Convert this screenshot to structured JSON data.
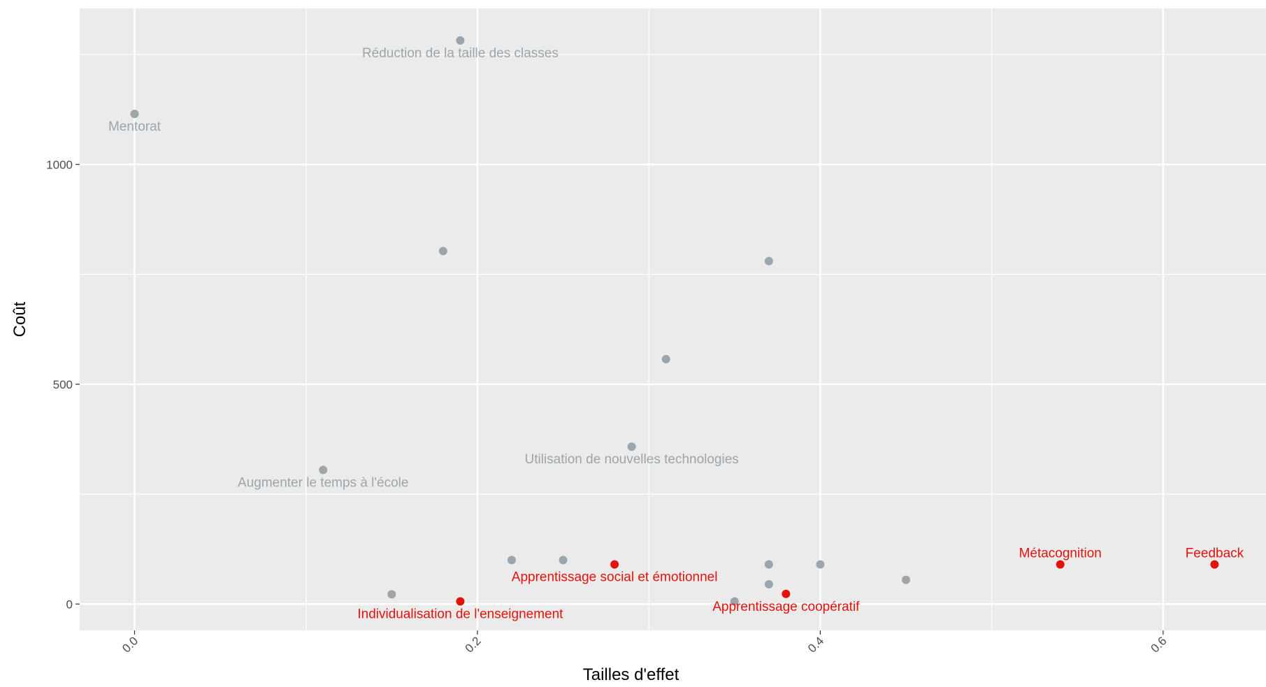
{
  "chart_data": {
    "type": "scatter",
    "xlabel": "Tailles d'effet",
    "ylabel": "Coût",
    "xlim": [
      -0.032,
      0.66
    ],
    "ylim": [
      -60,
      1355
    ],
    "x_ticks": [
      0.0,
      0.2,
      0.4,
      0.6
    ],
    "x_tick_labels": [
      "0.0",
      "0.2",
      "0.4",
      "0.6"
    ],
    "y_ticks": [
      0,
      500,
      1000
    ],
    "y_tick_labels": [
      "0",
      "500",
      "1000"
    ],
    "grid": true,
    "colors": {
      "panel": "#ebebeb",
      "grid": "#ffffff",
      "neutral": "#9aa6ac",
      "highlight": "#e3120b"
    },
    "points": [
      {
        "x": 0.0,
        "y": 1115,
        "label": "Mentorat",
        "highlight": false
      },
      {
        "x": 0.19,
        "y": 1282,
        "label": "Réduction de la taille des classes",
        "highlight": false
      },
      {
        "x": 0.18,
        "y": 803,
        "label": "",
        "highlight": false
      },
      {
        "x": 0.37,
        "y": 780,
        "label": "",
        "highlight": false
      },
      {
        "x": 0.31,
        "y": 557,
        "label": "",
        "highlight": false
      },
      {
        "x": 0.29,
        "y": 358,
        "label": "Utilisation de nouvelles technologies",
        "highlight": false
      },
      {
        "x": 0.11,
        "y": 305,
        "label": "Augmenter le temps à l'école",
        "highlight": false
      },
      {
        "x": 0.15,
        "y": 22,
        "label": "",
        "highlight": false
      },
      {
        "x": 0.22,
        "y": 100,
        "label": "",
        "highlight": false
      },
      {
        "x": 0.25,
        "y": 100,
        "label": "",
        "highlight": false
      },
      {
        "x": 0.35,
        "y": 6,
        "label": "",
        "highlight": false
      },
      {
        "x": 0.37,
        "y": 90,
        "label": "",
        "highlight": false
      },
      {
        "x": 0.37,
        "y": 45,
        "label": "",
        "highlight": false
      },
      {
        "x": 0.4,
        "y": 90,
        "label": "",
        "highlight": false
      },
      {
        "x": 0.45,
        "y": 55,
        "label": "",
        "highlight": false
      },
      {
        "x": 0.19,
        "y": 6,
        "label": "Individualisation de l'enseignement",
        "highlight": true
      },
      {
        "x": 0.28,
        "y": 90,
        "label": "Apprentissage social et émotionnel",
        "highlight": true
      },
      {
        "x": 0.38,
        "y": 23,
        "label": "Apprentissage coopératif",
        "highlight": true
      },
      {
        "x": 0.54,
        "y": 90,
        "label": "Métacognition",
        "highlight": true
      },
      {
        "x": 0.63,
        "y": 90,
        "label": "Feedback",
        "highlight": true
      }
    ]
  }
}
